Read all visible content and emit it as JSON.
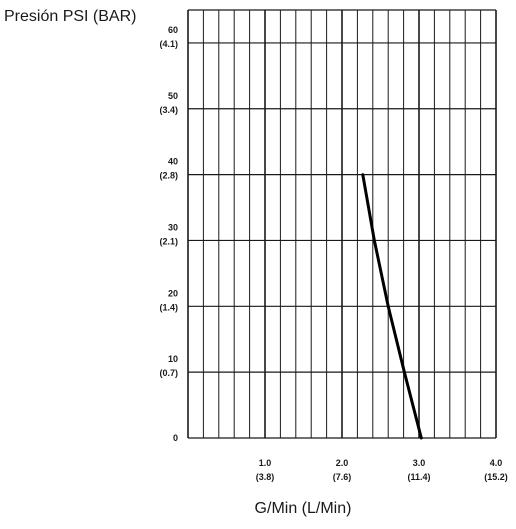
{
  "chart_data": {
    "type": "line",
    "title": "",
    "ylabel": "Presión PSI (BAR)",
    "xlabel": "G/Min (L/Min)",
    "xlim": [
      0,
      4.0
    ],
    "ylim": [
      0,
      65
    ],
    "grid": true,
    "x_ticks": [
      {
        "value": 1.0,
        "label": "1.0",
        "sublabel": "(3.8)"
      },
      {
        "value": 2.0,
        "label": "2.0",
        "sublabel": "(7.6)"
      },
      {
        "value": 3.0,
        "label": "3.0",
        "sublabel": "(11.4)"
      },
      {
        "value": 4.0,
        "label": "4.0",
        "sublabel": "(15.2)"
      }
    ],
    "y_ticks": [
      {
        "value": 0,
        "label": "0",
        "sublabel": ""
      },
      {
        "value": 10,
        "label": "10",
        "sublabel": "(0.7)"
      },
      {
        "value": 20,
        "label": "20",
        "sublabel": "(1.4)"
      },
      {
        "value": 30,
        "label": "30",
        "sublabel": "(2.1)"
      },
      {
        "value": 40,
        "label": "40",
        "sublabel": "(2.8)"
      },
      {
        "value": 50,
        "label": "50",
        "sublabel": "(3.4)"
      },
      {
        "value": 60,
        "label": "60",
        "sublabel": "(4.1)"
      }
    ],
    "series": [
      {
        "x": [
          2.27,
          2.42,
          2.6,
          2.81,
          3.03
        ],
        "y": [
          40,
          30,
          20,
          10,
          0
        ]
      }
    ]
  },
  "colors": {
    "grid": "#1a1a1a",
    "line": "#000000",
    "text": "#1a1a1a"
  }
}
